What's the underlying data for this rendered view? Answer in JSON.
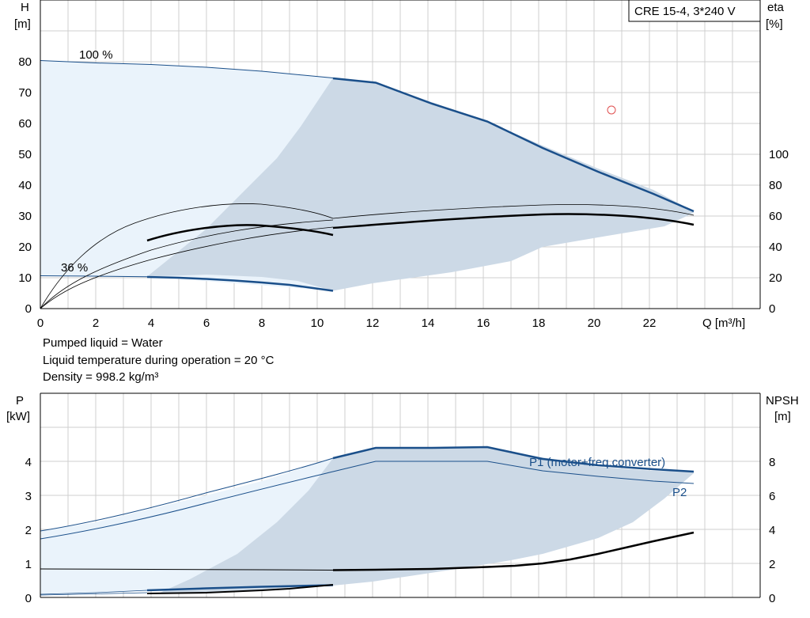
{
  "info_lines": [
    "Pumped liquid = Water",
    "Liquid temperature during operation = 20 °C",
    "Density = 998.2 kg/m³"
  ],
  "colors": {
    "curve_blue": "#1a4f8a",
    "region_light": "#eaf3fb",
    "region_dark": "#ccd9e6",
    "grid": "#cfcfcf",
    "duty_point": "#e05050"
  },
  "chart_data": [
    {
      "type": "line",
      "title": "CRE 15-4, 3*240 V",
      "xlabel": "Q [m³/h]",
      "x_ticks": [
        "0",
        "2",
        "4",
        "6",
        "8",
        "10",
        "12",
        "14",
        "16",
        "18",
        "20",
        "22"
      ],
      "xlim": [
        0,
        25.4
      ],
      "ylabel_left": [
        "H",
        "[m]"
      ],
      "y_ticks_left": [
        "0",
        "10",
        "20",
        "30",
        "40",
        "50",
        "60",
        "70",
        "80"
      ],
      "ylim_left": [
        0,
        99
      ],
      "ylabel_right": [
        "eta",
        "[%]"
      ],
      "y_ticks_right": [
        "0",
        "20",
        "40",
        "60",
        "80",
        "100"
      ],
      "ylim_right": [
        0,
        198
      ],
      "grid": true,
      "annotations": [
        "100 %",
        "36 %"
      ],
      "duty_point": {
        "x": 20.5,
        "y": 64.5
      },
      "series": [
        {
          "role": "head_max_dark",
          "axis": "left",
          "x": [
            10.5,
            12.1,
            16,
            18,
            20,
            22,
            23.5
          ],
          "y": [
            74.8,
            73.2,
            60.8,
            52,
            44.5,
            37.5,
            31.5
          ]
        },
        {
          "role": "head_max_thin",
          "axis": "left",
          "x": [
            0,
            2,
            4,
            6,
            8,
            10.5
          ],
          "y": [
            80.5,
            79.2,
            78.2,
            77.3,
            76.2,
            74.8
          ]
        },
        {
          "role": "head_min_dark",
          "axis": "left",
          "x": [
            3.8,
            5,
            6,
            7,
            8,
            9,
            10.5
          ],
          "y": [
            10.3,
            10.0,
            9.6,
            9.0,
            8.3,
            7.5,
            5.8
          ]
        },
        {
          "role": "head_min_thin",
          "axis": "left",
          "x": [
            0,
            2,
            3.8
          ],
          "y": [
            10.8,
            10.6,
            10.3
          ]
        },
        {
          "role": "eta_max_thin",
          "axis": "left",
          "x": [
            0,
            1,
            2,
            3,
            4,
            5,
            6,
            7,
            8,
            9,
            10.5
          ],
          "y": [
            0,
            10,
            17.5,
            23,
            27,
            30,
            32,
            33.3,
            33.8,
            33,
            29
          ]
        },
        {
          "role": "eta_max_run",
          "axis": "left",
          "x": [
            10.5,
            12,
            14,
            16,
            18,
            20,
            22,
            23.5
          ],
          "y": [
            29,
            30.2,
            31.8,
            33,
            33.6,
            33.2,
            31.8,
            30
          ]
        },
        {
          "role": "eta_bold_low",
          "axis": "left",
          "x": [
            3.8,
            5,
            6,
            7,
            8,
            9,
            10,
            10.5
          ],
          "y": [
            21.8,
            24.5,
            26.1,
            27,
            27.3,
            26.8,
            25,
            23.8
          ]
        },
        {
          "role": "eta_bold_high",
          "axis": "left",
          "x": [
            10.5,
            12,
            14,
            16,
            18,
            20,
            22,
            23.5
          ],
          "y": [
            26,
            27.4,
            28.9,
            30.1,
            30.6,
            30.2,
            28.9,
            27
          ]
        },
        {
          "role": "eta_36_thin",
          "axis": "left",
          "x": [
            0,
            1,
            2,
            3,
            4,
            6,
            8,
            10.5
          ],
          "y": [
            0,
            6,
            10.5,
            14,
            17,
            21.5,
            25,
            28.5
          ]
        },
        {
          "role": "eta_36_thin2",
          "axis": "left",
          "x": [
            0,
            1,
            2,
            3,
            4,
            6,
            8,
            10.5
          ],
          "y": [
            0,
            5,
            9,
            12,
            15,
            19.5,
            22.5,
            26
          ]
        }
      ]
    },
    {
      "type": "line",
      "ylabel_left": [
        "P",
        "[kW]"
      ],
      "y_ticks_left": [
        "0",
        "1",
        "2",
        "3",
        "4"
      ],
      "ylim_left": [
        0,
        5.1
      ],
      "ylabel_right": [
        "NPSH",
        "[m]"
      ],
      "y_ticks_right": [
        "0",
        "2",
        "4",
        "6",
        "8"
      ],
      "ylim_right": [
        0,
        10.2
      ],
      "xlim": [
        0,
        25.4
      ],
      "grid": true,
      "series_labels": [
        "P1 (motor+freq.converter)",
        "P2"
      ],
      "series": [
        {
          "name": "P1 (motor+freq.converter)",
          "axis": "left",
          "x": [
            10.5,
            12,
            14,
            16,
            18,
            20,
            22,
            23.5
          ],
          "y": [
            4.08,
            4.38,
            4.4,
            4.42,
            4.05,
            3.87,
            3.75,
            3.7
          ]
        },
        {
          "role": "p1_thin",
          "axis": "left",
          "x": [
            0,
            2,
            4,
            6,
            8,
            10.5
          ],
          "y": [
            1.95,
            2.3,
            2.75,
            3.2,
            3.6,
            4.08
          ]
        },
        {
          "name": "P2",
          "axis": "left",
          "x": [
            0,
            2,
            4,
            6,
            8,
            10.5,
            12,
            14,
            16,
            18,
            20,
            22,
            23.5
          ],
          "y": [
            1.75,
            2.1,
            2.5,
            2.95,
            3.35,
            3.75,
            4.0,
            4.0,
            4.0,
            3.7,
            3.52,
            3.4,
            3.35
          ]
        },
        {
          "role": "npsh_thin",
          "axis": "left",
          "x": [
            0,
            4,
            8,
            10.5
          ],
          "y": [
            0.83,
            0.82,
            0.82,
            0.81
          ]
        },
        {
          "role": "npsh_bold",
          "axis": "left",
          "x": [
            10.5,
            12,
            14,
            16,
            17,
            18,
            19,
            20,
            21,
            22,
            23.5
          ],
          "y": [
            0.82,
            0.84,
            0.86,
            0.9,
            0.93,
            1.0,
            1.12,
            1.28,
            1.45,
            1.62,
            1.93
          ]
        },
        {
          "role": "pmin_blue",
          "axis": "left",
          "x": [
            3.8,
            6,
            8,
            10.5
          ],
          "y": [
            0.22,
            0.28,
            0.33,
            0.38
          ]
        },
        {
          "role": "pmin_black",
          "axis": "left",
          "x": [
            3.8,
            6,
            8,
            9,
            10.5
          ],
          "y": [
            0.12,
            0.14,
            0.2,
            0.26,
            0.38
          ]
        },
        {
          "role": "pmin_thin",
          "axis": "left",
          "x": [
            0,
            2,
            3.8
          ],
          "y": [
            0.1,
            0.14,
            0.22
          ]
        },
        {
          "role": "pmin_thin2",
          "axis": "left",
          "x": [
            0,
            2,
            3.8
          ],
          "y": [
            0.06,
            0.09,
            0.12
          ]
        }
      ]
    }
  ]
}
